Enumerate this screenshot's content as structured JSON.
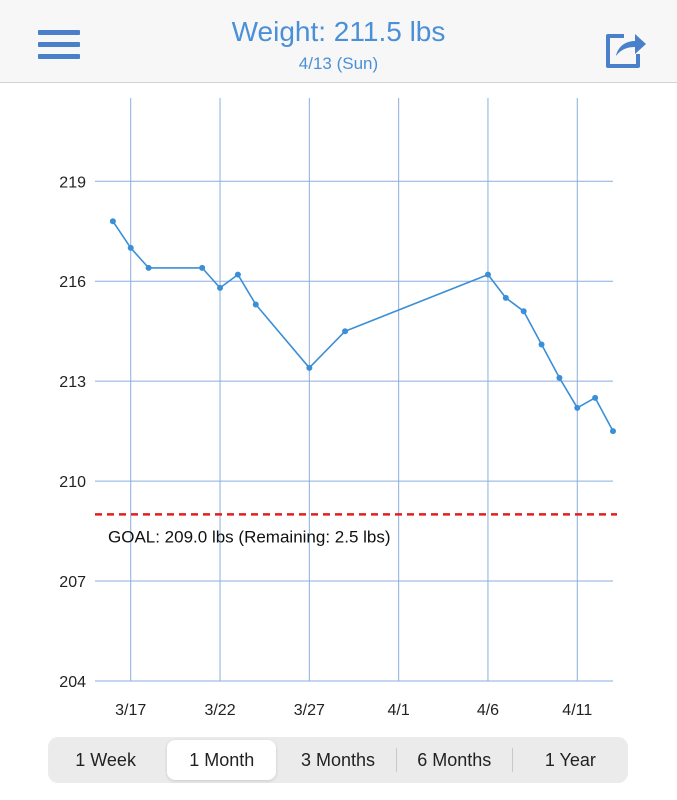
{
  "header": {
    "menu_icon": "hamburger-menu-icon",
    "title": "Weight: 211.5 lbs",
    "subtitle": "4/13 (Sun)",
    "share_icon": "share-icon",
    "accent_color": "#4a90d9"
  },
  "chart_data": {
    "type": "line",
    "title": "",
    "xlabel": "",
    "ylabel": "",
    "y_ticks": [
      "219",
      "216",
      "213",
      "210",
      "207",
      "204"
    ],
    "x_ticks": [
      "3/17",
      "3/22",
      "3/27",
      "4/1",
      "4/6",
      "4/11"
    ],
    "ylim": [
      204,
      221.5
    ],
    "xlim": [
      "3/15",
      "4/13"
    ],
    "grid": true,
    "series": [
      {
        "color": "#3b8fd6",
        "points": [
          {
            "x": "3/16",
            "y": 217.8
          },
          {
            "x": "3/17",
            "y": 217.0
          },
          {
            "x": "3/18",
            "y": 216.4
          },
          {
            "x": "3/21",
            "y": 216.4
          },
          {
            "x": "3/22",
            "y": 215.8
          },
          {
            "x": "3/23",
            "y": 216.2
          },
          {
            "x": "3/24",
            "y": 215.3
          },
          {
            "x": "3/27",
            "y": 213.4
          },
          {
            "x": "3/29",
            "y": 214.5
          },
          {
            "x": "4/6",
            "y": 216.2
          },
          {
            "x": "4/7",
            "y": 215.5
          },
          {
            "x": "4/8",
            "y": 215.1
          },
          {
            "x": "4/9",
            "y": 214.1
          },
          {
            "x": "4/10",
            "y": 213.1
          },
          {
            "x": "4/11",
            "y": 212.2
          },
          {
            "x": "4/12",
            "y": 212.5
          },
          {
            "x": "4/13",
            "y": 211.5
          }
        ]
      }
    ],
    "goal": {
      "value": 209.0,
      "label": "GOAL: 209.0 lbs (Remaining: 2.5 lbs)",
      "color": "#e02020"
    }
  },
  "range_selector": {
    "options": [
      "1 Week",
      "1 Month",
      "3 Months",
      "6 Months",
      "1 Year"
    ],
    "selected": "1 Month"
  }
}
